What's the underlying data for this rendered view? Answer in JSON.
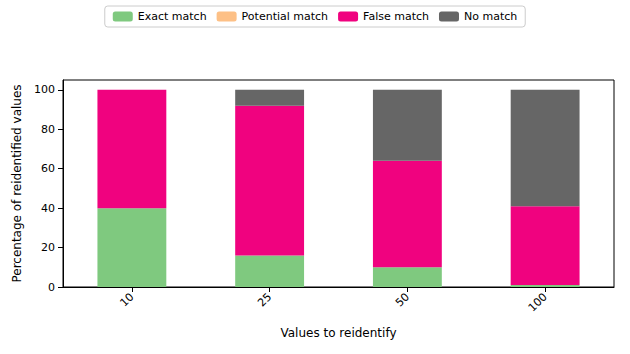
{
  "chart_data": {
    "type": "bar",
    "stacked": true,
    "legend": "top",
    "grid": false,
    "x_label": "Values to reidentify",
    "y_label": "Percentage of reidentified values",
    "categories": [
      "10",
      "25",
      "50",
      "100"
    ],
    "series": [
      {
        "name": "Exact match",
        "color": "#7fc97f",
        "values": [
          40,
          16,
          10,
          1
        ]
      },
      {
        "name": "Potential match",
        "color": "#fdc086",
        "values": [
          0,
          0,
          0,
          0
        ]
      },
      {
        "name": "False match",
        "color": "#f0027f",
        "values": [
          60,
          76,
          54,
          40
        ]
      },
      {
        "name": "No match",
        "color": "#666666",
        "values": [
          0,
          8,
          36,
          59
        ]
      }
    ],
    "ylim": [
      0,
      105
    ],
    "yticks": [
      0,
      20,
      40,
      60,
      80,
      100
    ]
  }
}
